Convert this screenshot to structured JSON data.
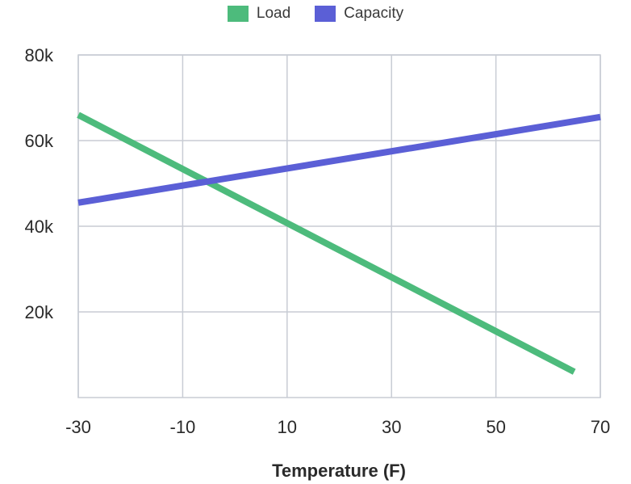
{
  "chart_data": {
    "type": "line",
    "title": "",
    "xlabel": "Temperature (F)",
    "ylabel": "",
    "x_ticks": [
      -30,
      -10,
      10,
      30,
      50,
      70
    ],
    "x_tick_labels": [
      "-30",
      "-10",
      "10",
      "30",
      "50",
      "70"
    ],
    "y_ticks": [
      20000,
      40000,
      60000,
      80000
    ],
    "y_tick_labels": [
      "20k",
      "40k",
      "60k",
      "80k"
    ],
    "xlim": [
      -30,
      70
    ],
    "ylim": [
      0,
      80000
    ],
    "grid": true,
    "legend_position": "top-center",
    "series": [
      {
        "name": "Load",
        "color": "#4dbb7c",
        "x": [
          -30,
          65
        ],
        "y": [
          66000,
          6000
        ]
      },
      {
        "name": "Capacity",
        "color": "#5b5fd6",
        "x": [
          -30,
          70
        ],
        "y": [
          45500,
          65500
        ]
      }
    ]
  }
}
